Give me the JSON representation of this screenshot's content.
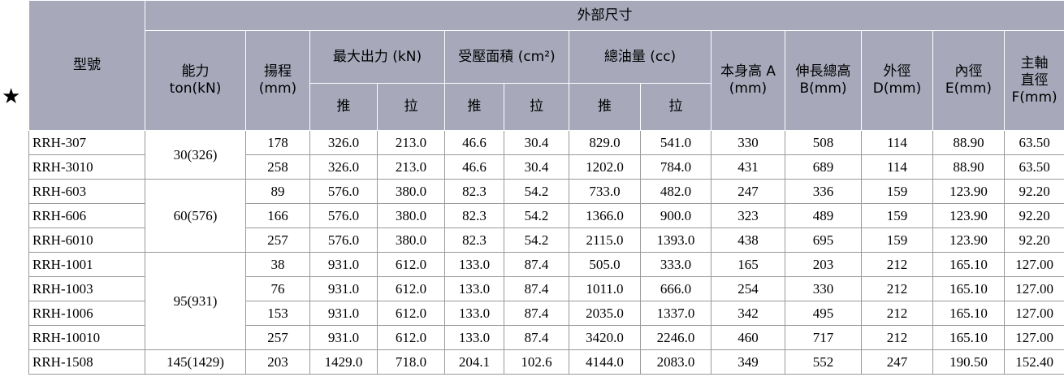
{
  "marker": "★",
  "header": {
    "model": "型號",
    "group": "外部尺寸",
    "capacity": "能力\nton(kN)",
    "stroke": "揚程\n(mm)",
    "force": "最大出力 (kN)",
    "area": "受壓面積 (cm²)",
    "oil": "總油量 (cc)",
    "subheaders": [
      "推",
      "拉",
      "推",
      "拉",
      "推",
      "拉"
    ],
    "height": "本身高 A\n(mm)",
    "extended": "伸長總高\nB(mm)",
    "outer": "外徑\nD(mm)",
    "inner": "內徑\nE(mm)",
    "shaft": "主軸\n直徑\nF(mm)"
  },
  "groups": [
    {
      "capacity": "30(326)",
      "rows": [
        [
          "RRH-307",
          "178",
          "326.0",
          "213.0",
          "46.6",
          "30.4",
          "829.0",
          "541.0",
          "330",
          "508",
          "114",
          "88.90",
          "63.50"
        ],
        [
          "RRH-3010",
          "258",
          "326.0",
          "213.0",
          "46.6",
          "30.4",
          "1202.0",
          "784.0",
          "431",
          "689",
          "114",
          "88.90",
          "63.50"
        ]
      ]
    },
    {
      "capacity": "60(576)",
      "rows": [
        [
          "RRH-603",
          "89",
          "576.0",
          "380.0",
          "82.3",
          "54.2",
          "733.0",
          "482.0",
          "247",
          "336",
          "159",
          "123.90",
          "92.20"
        ],
        [
          "RRH-606",
          "166",
          "576.0",
          "380.0",
          "82.3",
          "54.2",
          "1366.0",
          "900.0",
          "323",
          "489",
          "159",
          "123.90",
          "92.20"
        ],
        [
          "RRH-6010",
          "257",
          "576.0",
          "380.0",
          "82.3",
          "54.2",
          "2115.0",
          "1393.0",
          "438",
          "695",
          "159",
          "123.90",
          "92.20"
        ]
      ]
    },
    {
      "capacity": "95(931)",
      "rows": [
        [
          "RRH-1001",
          "38",
          "931.0",
          "612.0",
          "133.0",
          "87.4",
          "505.0",
          "333.0",
          "165",
          "203",
          "212",
          "165.10",
          "127.00"
        ],
        [
          "RRH-1003",
          "76",
          "931.0",
          "612.0",
          "133.0",
          "87.4",
          "1011.0",
          "666.0",
          "254",
          "330",
          "212",
          "165.10",
          "127.00"
        ],
        [
          "RRH-1006",
          "153",
          "931.0",
          "612.0",
          "133.0",
          "87.4",
          "2035.0",
          "1337.0",
          "342",
          "495",
          "212",
          "165.10",
          "127.00"
        ],
        [
          "RRH-10010",
          "257",
          "931.0",
          "612.0",
          "133.0",
          "87.4",
          "3420.0",
          "2246.0",
          "460",
          "717",
          "212",
          "165.10",
          "127.00"
        ]
      ]
    },
    {
      "capacity": "145(1429)",
      "rows": [
        [
          "RRH-1508",
          "203",
          "1429.0",
          "718.0",
          "204.1",
          "102.6",
          "4144.0",
          "2083.0",
          "349",
          "552",
          "247",
          "190.50",
          "152.40"
        ]
      ]
    }
  ]
}
